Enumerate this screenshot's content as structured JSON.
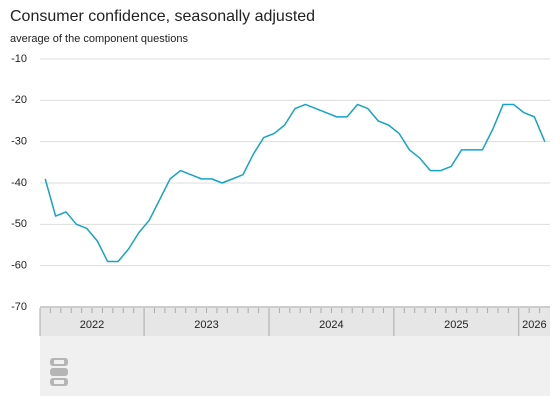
{
  "chart_data": {
    "type": "line",
    "title": "Consumer confidence, seasonally adjusted",
    "subtitle": "average of the component questions",
    "categories": [
      "2022",
      "2022",
      "2022",
      "2022",
      "2022",
      "2022",
      "2022",
      "2022",
      "2022",
      "2022",
      "2023",
      "2023",
      "2023",
      "2023",
      "2023",
      "2023",
      "2023",
      "2023",
      "2023",
      "2023",
      "2023",
      "2023",
      "2024",
      "2024",
      "2024",
      "2024",
      "2024",
      "2024",
      "2024",
      "2024",
      "2024",
      "2024",
      "2024",
      "2024",
      "2025",
      "2025",
      "2025",
      "2025",
      "2025",
      "2025",
      "2025",
      "2025",
      "2025",
      "2025",
      "2025",
      "2025",
      "2026",
      "2026",
      "2026"
    ],
    "series": [
      {
        "name": "Consumer confidence",
        "color": "#17a2c8",
        "values": [
          -39,
          -48,
          -47,
          -50,
          -51,
          -54,
          -59,
          -59,
          -56,
          -52,
          -49,
          -44,
          -39,
          -37,
          -38,
          -39,
          -39,
          -40,
          -39,
          -38,
          -33,
          -29,
          -28,
          -26,
          -22,
          -21,
          -22,
          -23,
          -24,
          -24,
          -21,
          -22,
          -25,
          -26,
          -28,
          -32,
          -34,
          -37,
          -37,
          -36,
          -32,
          -32,
          -32,
          -27,
          -21,
          -21,
          -23,
          -24,
          -30
        ]
      }
    ],
    "ylim": [
      -70,
      -10
    ],
    "yticks": [
      -10,
      -20,
      -30,
      -40,
      -50,
      -60,
      -70
    ],
    "grid": true
  }
}
